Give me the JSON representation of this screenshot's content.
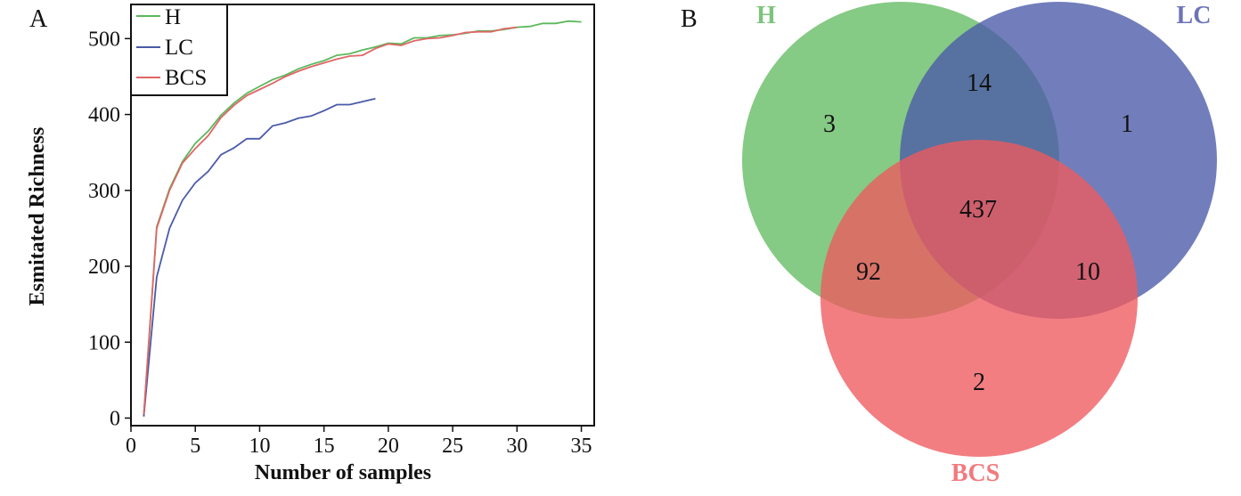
{
  "chart_data": [
    {
      "type": "line",
      "panel_label": "A",
      "title": "",
      "xlabel": "Number of samples",
      "ylabel": "Esmitated Richness",
      "xlim": [
        0,
        36
      ],
      "ylim": [
        -10,
        545
      ],
      "xticks": [
        0,
        5,
        10,
        15,
        20,
        25,
        30,
        35
      ],
      "yticks": [
        0,
        100,
        200,
        300,
        400,
        500
      ],
      "legend_position": "top-left",
      "grid": false,
      "series": [
        {
          "name": "H",
          "color": "#5cb85c",
          "x": [
            1,
            2,
            3,
            4,
            5,
            6,
            7,
            8,
            9,
            10,
            11,
            12,
            13,
            14,
            15,
            16,
            17,
            18,
            19,
            20,
            21,
            22,
            23,
            24,
            25,
            26,
            27,
            28,
            29,
            30,
            31,
            32,
            33,
            34,
            35
          ],
          "y": [
            3,
            252,
            302,
            338,
            362,
            378,
            399,
            415,
            428,
            437,
            446,
            452,
            460,
            466,
            471,
            478,
            480,
            485,
            489,
            494,
            493,
            501,
            501,
            504,
            505,
            507,
            510,
            510,
            512,
            515,
            516,
            520,
            520,
            523,
            522
          ]
        },
        {
          "name": "LC",
          "color": "#4a5aa8",
          "x": [
            1,
            2,
            3,
            4,
            5,
            6,
            7,
            8,
            9,
            10,
            11,
            12,
            13,
            14,
            15,
            16,
            17,
            18,
            19
          ],
          "y": [
            2,
            186,
            250,
            287,
            310,
            325,
            347,
            356,
            368,
            368,
            385,
            389,
            395,
            398,
            405,
            413,
            413,
            417,
            421
          ]
        },
        {
          "name": "BCS",
          "color": "#e06666",
          "x": [
            1,
            2,
            3,
            4,
            5,
            6,
            7,
            8,
            9,
            10,
            11,
            12,
            13,
            14,
            15,
            16,
            17,
            18,
            19,
            20,
            21,
            22,
            23,
            24,
            25,
            26,
            27,
            28,
            29,
            30
          ],
          "y": [
            5,
            250,
            300,
            336,
            355,
            372,
            396,
            412,
            425,
            433,
            441,
            450,
            457,
            463,
            468,
            473,
            477,
            478,
            487,
            493,
            491,
            497,
            500,
            501,
            504,
            508,
            509,
            509,
            513,
            515
          ]
        }
      ]
    },
    {
      "type": "venn",
      "panel_label": "B",
      "title": "",
      "sets": [
        {
          "name": "H",
          "color": "#5cb85c"
        },
        {
          "name": "LC",
          "color": "#4a5aa8"
        },
        {
          "name": "BCS",
          "color": "#ee5a5f"
        }
      ],
      "regions": {
        "H_only": "3",
        "LC_only": "1",
        "BCS_only": "2",
        "H_LC": "14",
        "H_BCS": "92",
        "LC_BCS": "10",
        "H_LC_BCS": "437"
      }
    }
  ]
}
